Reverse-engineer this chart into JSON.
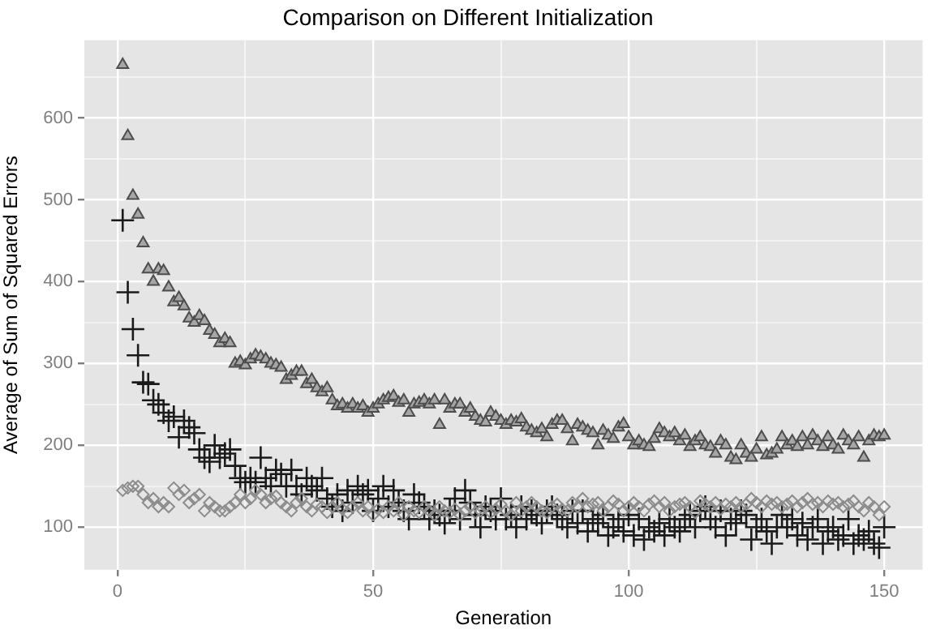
{
  "chart_data": {
    "type": "scatter",
    "title": "Comparison on Different Initialization",
    "xlabel": "Generation",
    "ylabel": "Average of Sum of Squared Errors",
    "x": [
      1,
      2,
      3,
      4,
      5,
      6,
      7,
      8,
      9,
      10,
      11,
      12,
      13,
      14,
      15,
      16,
      17,
      18,
      19,
      20,
      21,
      22,
      23,
      24,
      25,
      26,
      27,
      28,
      29,
      30,
      31,
      32,
      33,
      34,
      35,
      36,
      37,
      38,
      39,
      40,
      41,
      42,
      43,
      44,
      45,
      46,
      47,
      48,
      49,
      50,
      51,
      52,
      53,
      54,
      55,
      56,
      57,
      58,
      59,
      60,
      61,
      62,
      63,
      64,
      65,
      66,
      67,
      68,
      69,
      70,
      71,
      72,
      73,
      74,
      75,
      76,
      77,
      78,
      79,
      80,
      81,
      82,
      83,
      84,
      85,
      86,
      87,
      88,
      89,
      90,
      91,
      92,
      93,
      94,
      95,
      96,
      97,
      98,
      99,
      100,
      101,
      102,
      103,
      104,
      105,
      106,
      107,
      108,
      109,
      110,
      111,
      112,
      113,
      114,
      115,
      116,
      117,
      118,
      119,
      120,
      121,
      122,
      123,
      124,
      125,
      126,
      127,
      128,
      129,
      130,
      131,
      132,
      133,
      134,
      135,
      136,
      137,
      138,
      139,
      140,
      141,
      142,
      143,
      144,
      145,
      146,
      147,
      148,
      149,
      150
    ],
    "series": [
      {
        "color": "#4d4d4d",
        "marker": "triangle",
        "values": [
          665,
          578,
          505,
          482,
          447,
          415,
          400,
          415,
          413,
          393,
          375,
          380,
          370,
          355,
          350,
          358,
          352,
          340,
          335,
          325,
          330,
          325,
          300,
          302,
          298,
          305,
          310,
          308,
          305,
          300,
          298,
          295,
          280,
          285,
          290,
          290,
          275,
          280,
          270,
          265,
          270,
          255,
          248,
          250,
          245,
          250,
          245,
          248,
          240,
          245,
          250,
          255,
          258,
          260,
          252,
          255,
          240,
          250,
          252,
          255,
          250,
          255,
          225,
          255,
          245,
          250,
          250,
          240,
          245,
          235,
          230,
          228,
          240,
          235,
          230,
          225,
          230,
          228,
          232,
          222,
          218,
          215,
          220,
          210,
          225,
          230,
          230,
          220,
          205,
          225,
          222,
          218,
          215,
          200,
          218,
          212,
          208,
          222,
          226,
          210,
          200,
          205,
          200,
          198,
          208,
          220,
          215,
          210,
          215,
          205,
          212,
          198,
          205,
          210,
          200,
          198,
          190,
          205,
          200,
          185,
          182,
          200,
          190,
          185,
          195,
          210,
          188,
          190,
          195,
          210,
          200,
          205,
          198,
          210,
          200,
          212,
          205,
          198,
          210,
          200,
          195,
          212,
          205,
          200,
          210,
          185,
          205,
          212,
          210,
          212
        ]
      },
      {
        "color": "#1a1a1a",
        "marker": "cross",
        "values": [
          475,
          387,
          342,
          310,
          277,
          275,
          255,
          250,
          240,
          230,
          235,
          210,
          230,
          222,
          215,
          195,
          185,
          180,
          200,
          185,
          190,
          195,
          175,
          160,
          155,
          160,
          155,
          185,
          160,
          150,
          170,
          165,
          150,
          170,
          150,
          140,
          160,
          150,
          145,
          160,
          135,
          125,
          140,
          120,
          145,
          130,
          150,
          140,
          145,
          120,
          135,
          150,
          125,
          145,
          130,
          120,
          110,
          140,
          130,
          125,
          110,
          120,
          115,
          105,
          120,
          135,
          110,
          145,
          130,
          115,
          100,
          125,
          120,
          110,
          135,
          110,
          115,
          100,
          125,
          110,
          120,
          115,
          105,
          120,
          125,
          115,
          110,
          100,
          120,
          105,
          120,
          95,
          110,
          105,
          115,
          90,
          100,
          110,
          95,
          115,
          90,
          110,
          85,
          100,
          95,
          105,
          90,
          110,
          100,
          95,
          110,
          115,
          100,
          120,
          125,
          110,
          100,
          120,
          90,
          110,
          105,
          120,
          115,
          85,
          100,
          110,
          95,
          80,
          100,
          115,
          100,
          110,
          90,
          105,
          85,
          100,
          110,
          80,
          95,
          100,
          85,
          90,
          110,
          80,
          90,
          85,
          95,
          80,
          75,
          100
        ]
      },
      {
        "color": "#8c8c8c",
        "marker": "diamond",
        "values": [
          145,
          148,
          150,
          150,
          140,
          130,
          135,
          125,
          130,
          125,
          148,
          140,
          145,
          130,
          135,
          140,
          120,
          130,
          125,
          120,
          120,
          125,
          130,
          140,
          130,
          135,
          145,
          140,
          130,
          135,
          138,
          130,
          125,
          120,
          130,
          135,
          125,
          120,
          128,
          125,
          118,
          125,
          130,
          122,
          118,
          125,
          130,
          120,
          125,
          115,
          122,
          118,
          125,
          120,
          130,
          115,
          125,
          120,
          118,
          125,
          120,
          115,
          125,
          120,
          118,
          122,
          115,
          120,
          125,
          118,
          120,
          125,
          118,
          122,
          128,
          120,
          115,
          130,
          120,
          125,
          130,
          125,
          120,
          118,
          125,
          128,
          122,
          120,
          130,
          125,
          135,
          125,
          128,
          130,
          120,
          125,
          132,
          128,
          120,
          125,
          130,
          125,
          120,
          128,
          132,
          125,
          130,
          120,
          125,
          128,
          130,
          125,
          118,
          132,
          128,
          125,
          130,
          122,
          128,
          125,
          130,
          125,
          128,
          135,
          130,
          125,
          132,
          128,
          130,
          125,
          128,
          132,
          125,
          130,
          135,
          128,
          130,
          125,
          132,
          128,
          130,
          125,
          128,
          132,
          125,
          120,
          130,
          125,
          115,
          125
        ]
      }
    ],
    "xlim": [
      -6.5,
      157.5
    ],
    "xticks": [
      0,
      {
        "value": 25,
        "label": null
      },
      50,
      {
        "value": 75,
        "label": null
      },
      100,
      {
        "value": 125,
        "label": null
      },
      150
    ],
    "ylim": [
      48,
      695
    ],
    "yticks": [
      100,
      {
        "value": 150,
        "label": null
      },
      200,
      {
        "value": 250,
        "label": null
      },
      300,
      {
        "value": 350,
        "label": null
      },
      400,
      {
        "value": 450,
        "label": null
      },
      500,
      {
        "value": 550,
        "label": null
      },
      600,
      {
        "value": 650,
        "label": null
      }
    ],
    "grid": true,
    "legend": false
  }
}
